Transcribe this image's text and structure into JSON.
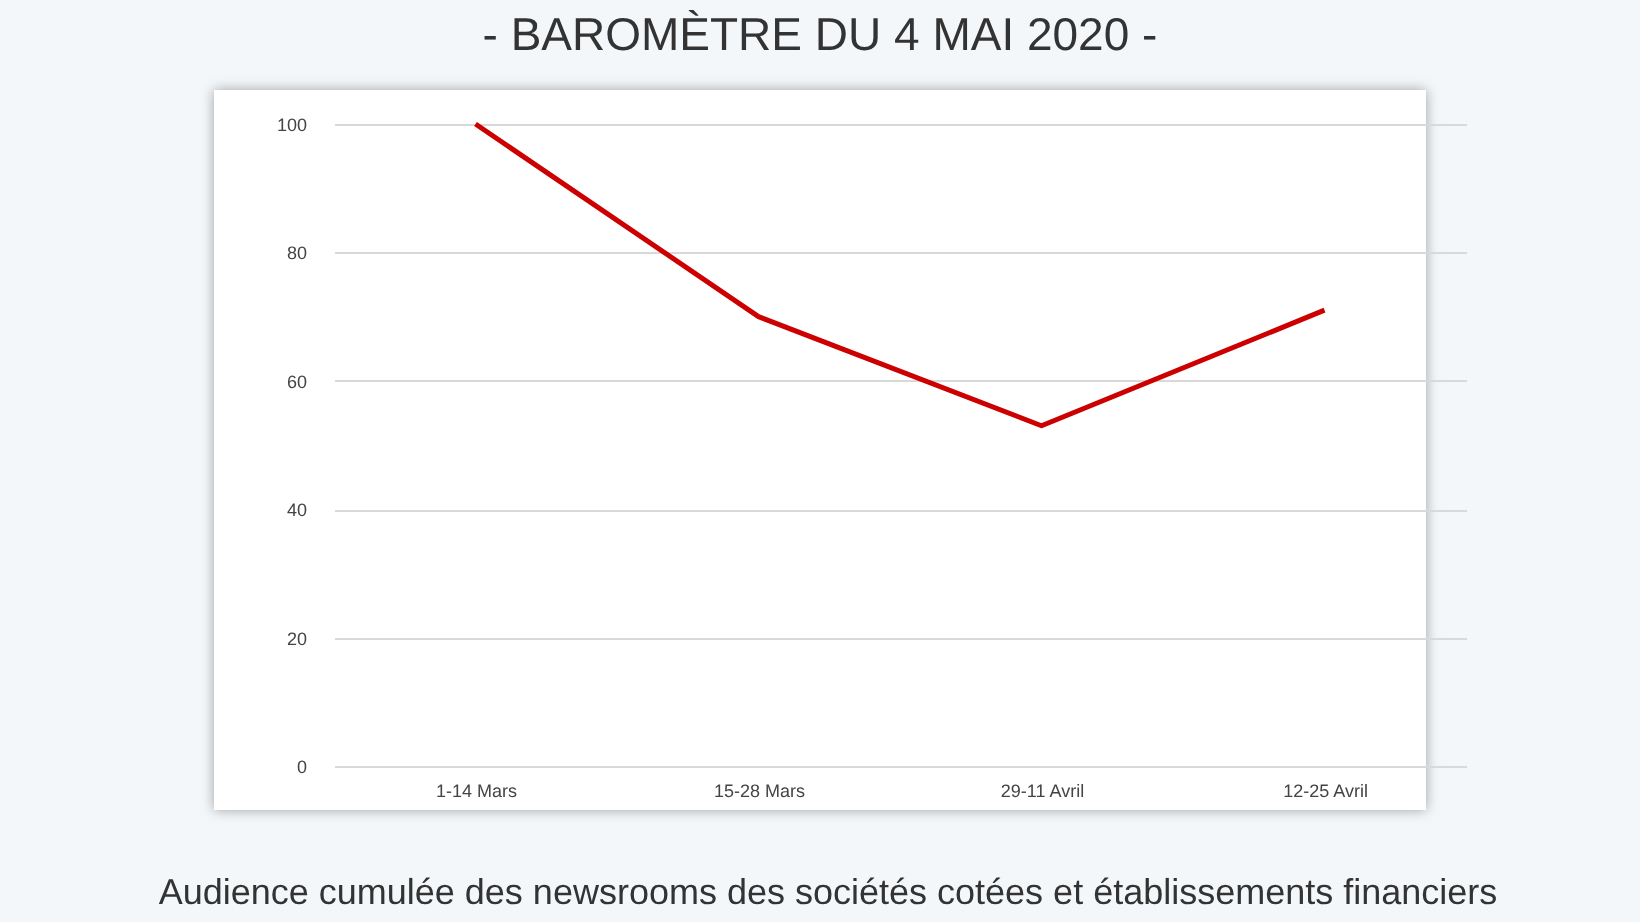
{
  "chart_data": {
    "type": "line",
    "title": "- BAROMÈTRE DU 4 MAI 2020 -",
    "categories": [
      "1-14 Mars",
      "15-28 Mars",
      "29-11 Avril",
      "12-25 Avril"
    ],
    "series": [
      {
        "color": "#cc0000",
        "values": [
          100,
          70,
          53,
          71
        ]
      }
    ],
    "ylim": [
      0,
      100
    ],
    "yticks": [
      0,
      20,
      40,
      60,
      80,
      100
    ],
    "grid": "y",
    "legend": false,
    "marker": "none",
    "line_style": "solid",
    "annotations": [
      "Audience cumulée des newsrooms des sociétés cotées et établissements financiers"
    ]
  }
}
